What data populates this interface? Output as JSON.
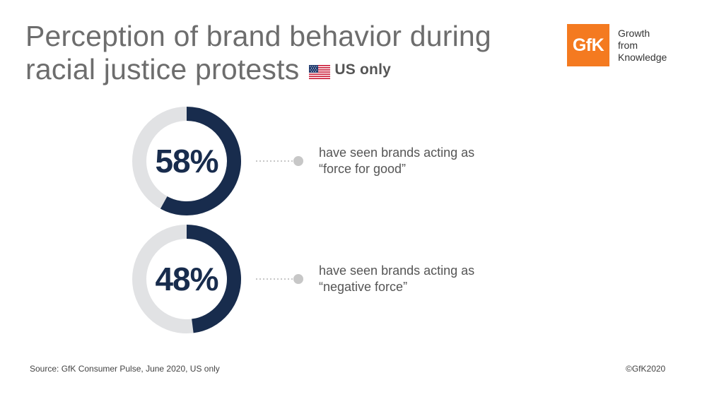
{
  "header": {
    "title_line1": "Perception of brand behavior during",
    "title_line2": "racial justice protests",
    "flag_icon": "us-flag-icon",
    "region_label": "US only"
  },
  "logo": {
    "text": "GfK",
    "tagline": [
      "Growth",
      "from",
      "Knowledge"
    ],
    "color": "#f47a20"
  },
  "chart_data": {
    "type": "donut",
    "items": [
      {
        "value": 58,
        "label": "58%",
        "description": [
          "have seen brands acting as",
          "“force for good”"
        ]
      },
      {
        "value": 48,
        "label": "48%",
        "description": [
          "have seen brands acting as",
          "“negative force”"
        ]
      }
    ],
    "max": 100,
    "colors": {
      "filled": "#182c4d",
      "track": "#e1e2e4",
      "connector": "#c7c7c7"
    }
  },
  "footer": {
    "source": "Source: GfK Consumer Pulse, June 2020, US only",
    "copyright": "©GfK2020"
  }
}
